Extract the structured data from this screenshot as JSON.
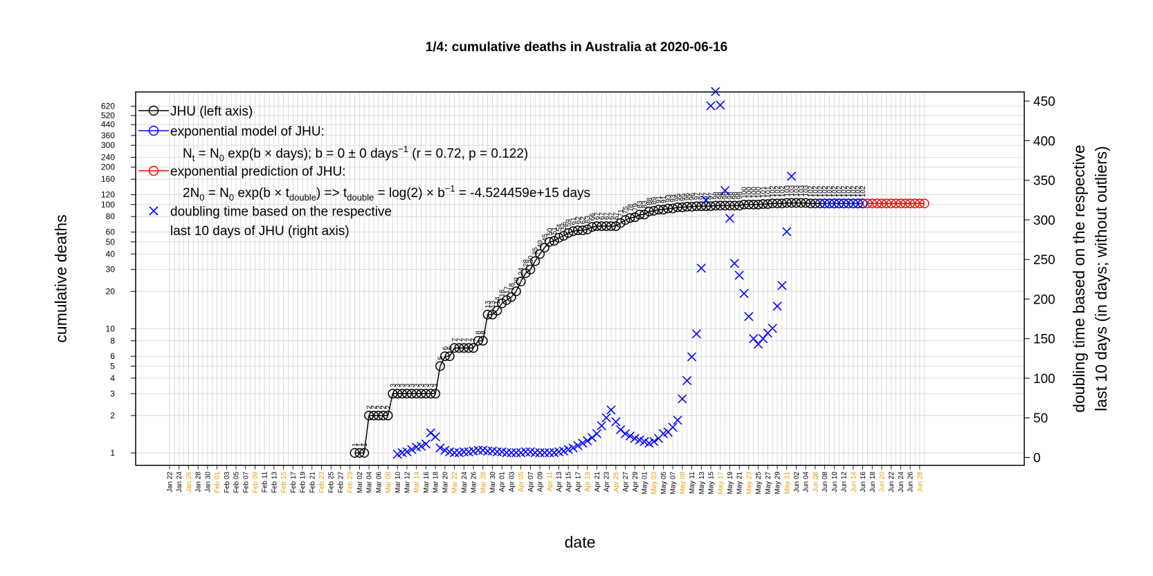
{
  "chart_data": {
    "type": "line",
    "title": "1/4: cumulative deaths in Australia at 2020-06-16",
    "xlabel": "date",
    "ylabel_left": "cumulative deaths",
    "ylabel_right": [
      "doubling time based on the respective",
      "last 10 days (in days; without outliers)"
    ],
    "x_range": [
      "2020-01-22",
      "2020-06-29"
    ],
    "left_axis": {
      "scale": "log",
      "ylim": [
        1,
        700
      ],
      "ticks": [
        1,
        2,
        3,
        4,
        5,
        6,
        8,
        10,
        20,
        30,
        40,
        50,
        60,
        80,
        100,
        120,
        160,
        200,
        240,
        300,
        360,
        440,
        520,
        620
      ]
    },
    "right_axis": {
      "scale": "linear",
      "ylim": [
        0,
        460
      ],
      "ticks": [
        0,
        50,
        100,
        150,
        200,
        250,
        300,
        350,
        400,
        450
      ]
    },
    "grid": true,
    "legend": {
      "placement": "top-left",
      "entries": [
        {
          "text": "JHU (left axis)",
          "color": "#000000",
          "symbol": "circle-line"
        },
        {
          "text": "exponential model of JHU:",
          "color": "#0000ff",
          "symbol": "circle-line"
        },
        {
          "text": "exponential prediction of JHU:",
          "color": "#ff0000",
          "symbol": "circle-line"
        },
        {
          "text": "doubling time based on the respective",
          "color": "#0000ff",
          "symbol": "cross"
        }
      ],
      "model_formula": "Nt = N0 exp(b × days); b = 0 ± 0 days−1 (r = 0.72, p = 0.122)",
      "prediction_formula": "2N0 = N0 exp(b × tdouble) => tdouble = log(2) × b−1 = -4.524459e+15 days",
      "cross_line2": "last 10 days of JHU (right axis)"
    },
    "x_tick_labels": [
      "Jan 22",
      "Jan 24",
      "Jan 26",
      "Jan 28",
      "Jan 30",
      "Feb 01",
      "Feb 03",
      "Feb 05",
      "Feb 07",
      "Feb 09",
      "Feb 11",
      "Feb 13",
      "Feb 15",
      "Feb 17",
      "Feb 19",
      "Feb 21",
      "Feb 23",
      "Feb 25",
      "Feb 27",
      "Feb 29",
      "Mar 02",
      "Mar 04",
      "Mar 06",
      "Mar 08",
      "Mar 10",
      "Mar 12",
      "Mar 14",
      "Mar 16",
      "Mar 18",
      "Mar 20",
      "Mar 22",
      "Mar 24",
      "Mar 26",
      "Mar 28",
      "Mar 30",
      "Apr 01",
      "Apr 03",
      "Apr 05",
      "Apr 07",
      "Apr 09",
      "Apr 11",
      "Apr 13",
      "Apr 15",
      "Apr 17",
      "Apr 19",
      "Apr 21",
      "Apr 23",
      "Apr 25",
      "Apr 27",
      "Apr 29",
      "May 01",
      "May 03",
      "May 05",
      "May 07",
      "May 09",
      "May 11",
      "May 13",
      "May 15",
      "May 17",
      "May 19",
      "May 21",
      "May 23",
      "May 25",
      "May 27",
      "May 29",
      "May 31",
      "Jun 02",
      "Jun 04",
      "Jun 06",
      "Jun 08",
      "Jun 10",
      "Jun 12",
      "Jun 14",
      "Jun 16",
      "Jun 18",
      "Jun 20",
      "Jun 22",
      "Jun 24",
      "Jun 26",
      "Jun 28"
    ],
    "weekend_tick_color": "#e69f00",
    "series": [
      {
        "name": "JHU (left axis)",
        "color": "#000000",
        "axis": "left",
        "start": "2020-03-01",
        "values": [
          1,
          1,
          1,
          2,
          2,
          2,
          2,
          2,
          3,
          3,
          3,
          3,
          3,
          3,
          3,
          3,
          3,
          3,
          5,
          6,
          6,
          7,
          7,
          7,
          7,
          7,
          8,
          8,
          13,
          13,
          14,
          16,
          17,
          18,
          20,
          24,
          28,
          30,
          35,
          40,
          45,
          50,
          51,
          54,
          56,
          59,
          61,
          62,
          62,
          63,
          66,
          67,
          67,
          67,
          67,
          67,
          71,
          75,
          78,
          79,
          83,
          83,
          88,
          89,
          91,
          91,
          93,
          93,
          95,
          95,
          96,
          96,
          97,
          97,
          97,
          97,
          98,
          98,
          98,
          98,
          98,
          98,
          100,
          100,
          100,
          100,
          101,
          101,
          102,
          102,
          102,
          103,
          103,
          103,
          103,
          103,
          102,
          102,
          102,
          102,
          102,
          102,
          102,
          102,
          102,
          102,
          102,
          102
        ]
      },
      {
        "name": "exponential model of JHU:",
        "color": "#0000ff",
        "axis": "left",
        "start": "2020-06-07",
        "values": [
          102,
          102,
          102,
          102,
          102,
          102,
          102,
          102,
          102,
          102
        ]
      },
      {
        "name": "exponential prediction of JHU:",
        "color": "#ff0000",
        "axis": "left",
        "start": "2020-06-17",
        "values": [
          102,
          102,
          102,
          102,
          102,
          102,
          102,
          102,
          102,
          102,
          102,
          102,
          102
        ]
      },
      {
        "name": "doubling time based on the respective",
        "color": "#0000ff",
        "axis": "right",
        "marker": "cross",
        "points": [
          [
            "2020-03-10",
            4
          ],
          [
            "2020-03-11",
            6
          ],
          [
            "2020-03-12",
            7
          ],
          [
            "2020-03-13",
            10
          ],
          [
            "2020-03-14",
            13
          ],
          [
            "2020-03-15",
            14
          ],
          [
            "2020-03-16",
            17
          ],
          [
            "2020-03-17",
            31
          ],
          [
            "2020-03-18",
            26
          ],
          [
            "2020-03-19",
            12
          ],
          [
            "2020-03-20",
            9
          ],
          [
            "2020-03-21",
            7
          ],
          [
            "2020-03-22",
            6
          ],
          [
            "2020-03-23",
            6
          ],
          [
            "2020-03-24",
            7
          ],
          [
            "2020-03-25",
            7
          ],
          [
            "2020-03-26",
            8
          ],
          [
            "2020-03-27",
            9
          ],
          [
            "2020-03-28",
            9
          ],
          [
            "2020-03-29",
            8
          ],
          [
            "2020-03-30",
            8
          ],
          [
            "2020-03-31",
            7
          ],
          [
            "2020-04-01",
            7
          ],
          [
            "2020-04-02",
            6
          ],
          [
            "2020-04-03",
            6
          ],
          [
            "2020-04-04",
            6
          ],
          [
            "2020-04-05",
            6
          ],
          [
            "2020-04-06",
            7
          ],
          [
            "2020-04-07",
            7
          ],
          [
            "2020-04-08",
            6
          ],
          [
            "2020-04-09",
            6
          ],
          [
            "2020-04-10",
            6
          ],
          [
            "2020-04-11",
            6
          ],
          [
            "2020-04-12",
            6
          ],
          [
            "2020-04-13",
            7
          ],
          [
            "2020-04-14",
            8
          ],
          [
            "2020-04-15",
            10
          ],
          [
            "2020-04-16",
            12
          ],
          [
            "2020-04-17",
            15
          ],
          [
            "2020-04-18",
            18
          ],
          [
            "2020-04-19",
            21
          ],
          [
            "2020-04-20",
            25
          ],
          [
            "2020-04-21",
            30
          ],
          [
            "2020-04-22",
            40
          ],
          [
            "2020-04-23",
            50
          ],
          [
            "2020-04-24",
            60
          ],
          [
            "2020-04-25",
            45
          ],
          [
            "2020-04-26",
            35
          ],
          [
            "2020-04-27",
            30
          ],
          [
            "2020-04-28",
            27
          ],
          [
            "2020-04-29",
            24
          ],
          [
            "2020-04-30",
            22
          ],
          [
            "2020-05-01",
            20
          ],
          [
            "2020-05-02",
            18
          ],
          [
            "2020-05-03",
            20
          ],
          [
            "2020-05-04",
            24
          ],
          [
            "2020-05-05",
            30
          ],
          [
            "2020-05-06",
            32
          ],
          [
            "2020-05-07",
            38
          ],
          [
            "2020-05-08",
            47
          ],
          [
            "2020-05-09",
            74
          ],
          [
            "2020-05-10",
            97
          ],
          [
            "2020-05-11",
            127
          ],
          [
            "2020-05-12",
            156
          ],
          [
            "2020-05-13",
            239
          ],
          [
            "2020-05-14",
            325
          ],
          [
            "2020-05-15",
            444
          ],
          [
            "2020-05-16",
            462
          ],
          [
            "2020-05-17",
            445
          ],
          [
            "2020-05-18",
            337
          ],
          [
            "2020-05-19",
            302
          ],
          [
            "2020-05-20",
            245
          ],
          [
            "2020-05-21",
            230
          ],
          [
            "2020-05-22",
            207
          ],
          [
            "2020-05-23",
            178
          ],
          [
            "2020-05-24",
            150
          ],
          [
            "2020-05-25",
            143
          ],
          [
            "2020-05-26",
            150
          ],
          [
            "2020-05-27",
            157
          ],
          [
            "2020-05-28",
            163
          ],
          [
            "2020-05-29",
            191
          ],
          [
            "2020-05-30",
            217
          ],
          [
            "2020-05-31",
            285
          ],
          [
            "2020-06-01",
            355
          ]
        ]
      }
    ]
  }
}
